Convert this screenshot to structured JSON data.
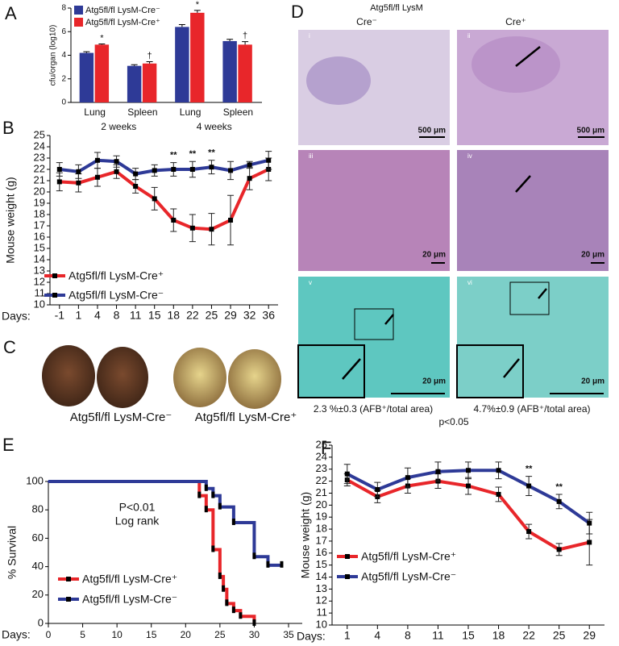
{
  "chart_data": [
    {
      "type": "bar",
      "panel_label": "A",
      "ylabel": "cfu/organ (log10)",
      "categories": [
        "Lung",
        "Spleen",
        "Lung",
        "Spleen"
      ],
      "groups": [
        "2 weeks",
        "4 weeks"
      ],
      "ylim": [
        0,
        8
      ],
      "yticks": [
        0,
        2,
        4,
        6,
        8
      ],
      "legend": "upper left",
      "series": [
        {
          "name": "Atg5fl/fl LysM-Cre⁻",
          "color": "#2e3a97",
          "values": [
            4.2,
            3.1,
            6.4,
            5.2
          ],
          "errors": [
            0.1,
            0.1,
            0.2,
            0.15
          ]
        },
        {
          "name": "Atg5fl/fl LysM-Cre⁺",
          "color": "#e8262a",
          "values": [
            4.9,
            3.3,
            7.6,
            4.9
          ],
          "errors": [
            0.06,
            0.15,
            0.2,
            0.25
          ],
          "annotations": [
            "*",
            "†",
            "*",
            "†"
          ]
        }
      ]
    },
    {
      "type": "line",
      "panel_label": "B",
      "ylabel": "Mouse weight (g)",
      "xlabel": "Days:",
      "categories": [
        "-1",
        "1",
        "4",
        "8",
        "11",
        "15",
        "18",
        "22",
        "25",
        "29",
        "32",
        "36"
      ],
      "ylim": [
        10,
        25
      ],
      "yticks": [
        10,
        11,
        12,
        13,
        14,
        15,
        16,
        17,
        18,
        19,
        20,
        21,
        22,
        23,
        24,
        25
      ],
      "legend": "lower left",
      "series": [
        {
          "name": "Atg5fl/fl LysM-Cre⁺",
          "color": "#e8262a",
          "values": [
            20.9,
            20.8,
            21.3,
            21.8,
            20.5,
            19.4,
            17.5,
            16.8,
            16.7,
            17.5,
            21.2,
            22.0
          ],
          "errors": [
            0.8,
            0.8,
            0.8,
            0.6,
            0.6,
            1.0,
            1.0,
            1.2,
            1.4,
            2.2,
            1.0,
            1.0
          ]
        },
        {
          "name": "Atg5fl/fl LysM-Cre⁻",
          "color": "#2e3a97",
          "values": [
            22.0,
            21.8,
            22.8,
            22.7,
            21.6,
            21.9,
            22.0,
            22.0,
            22.2,
            21.9,
            22.4,
            22.8
          ],
          "errors": [
            0.6,
            0.6,
            0.7,
            0.5,
            0.5,
            0.5,
            0.6,
            0.7,
            0.6,
            0.8,
            0.3,
            0.8
          ],
          "annotations": [
            null,
            null,
            null,
            null,
            null,
            null,
            "**",
            "**",
            "**",
            null,
            null,
            null
          ]
        }
      ]
    },
    {
      "type": "step",
      "panel_label": "E",
      "ylabel": "% Survival",
      "xlabel": "Days:",
      "xlim": [
        0,
        35
      ],
      "xticks": [
        0,
        5,
        10,
        15,
        20,
        25,
        30,
        35
      ],
      "ylim": [
        0,
        100
      ],
      "yticks": [
        0,
        20,
        40,
        60,
        80,
        100
      ],
      "annotations": [
        "P<0.01",
        "Log rank"
      ],
      "legend": "lower left",
      "series": [
        {
          "name": "Atg5fl/fl LysM-Cre⁺",
          "color": "#e8262a",
          "x": [
            0,
            22,
            23,
            24,
            25,
            25.5,
            26,
            27,
            28,
            30
          ],
          "values": [
            100,
            90,
            80,
            52,
            33,
            24,
            14,
            9,
            5,
            0
          ]
        },
        {
          "name": "Atg5fl/fl LysM-Cre⁻",
          "color": "#2e3a97",
          "x": [
            0,
            23,
            24,
            25,
            27,
            30,
            32,
            34
          ],
          "values": [
            100,
            95,
            90,
            82,
            71,
            47,
            41,
            41
          ]
        }
      ]
    },
    {
      "type": "line",
      "panel_label": "F",
      "ylabel": "Mouse weight (g)",
      "xlabel": "Days:",
      "categories": [
        "1",
        "4",
        "8",
        "11",
        "15",
        "18",
        "22",
        "25",
        "29"
      ],
      "ylim": [
        10,
        25
      ],
      "yticks": [
        10,
        11,
        12,
        13,
        14,
        15,
        16,
        17,
        18,
        19,
        20,
        21,
        22,
        23,
        24,
        25
      ],
      "legend": "lower left",
      "series": [
        {
          "name": "Atg5fl/fl LysM-Cre⁺",
          "color": "#e8262a",
          "values": [
            22.1,
            20.7,
            21.6,
            22.0,
            21.6,
            20.9,
            17.8,
            16.3,
            16.9
          ],
          "errors": [
            0.5,
            0.5,
            0.6,
            0.6,
            0.7,
            0.6,
            0.6,
            0.5,
            1.9
          ]
        },
        {
          "name": "Atg5fl/fl LysM-Cre⁻",
          "color": "#2e3a97",
          "values": [
            22.6,
            21.3,
            22.3,
            22.8,
            22.9,
            22.9,
            21.6,
            20.3,
            18.5
          ],
          "errors": [
            0.8,
            0.6,
            0.8,
            0.8,
            0.7,
            0.7,
            0.8,
            0.6,
            0.9
          ],
          "annotations": [
            null,
            null,
            null,
            null,
            null,
            null,
            "**",
            "**",
            null
          ]
        }
      ]
    }
  ],
  "panel_c": {
    "label": "C",
    "groups": [
      {
        "name": "Atg5fl/fl LysM-Cre⁻",
        "color": "#2e3a97"
      },
      {
        "name": "Atg5fl/fl LysM-Cre⁺",
        "color": "#e8262a"
      }
    ]
  },
  "panel_d": {
    "label": "D",
    "title": "Atg5fl/fl LysM",
    "columns": [
      "Cre⁻",
      "Cre⁺"
    ],
    "image_labels": [
      "i",
      "ii",
      "iii",
      "iv",
      "v",
      "vi"
    ],
    "scale_bars": [
      "500 μm",
      "500 μm",
      "20 μm",
      "20 μm",
      "20 μm",
      "20 μm"
    ],
    "captions": [
      "2.3 %±0.3 (AFB⁺/total area)",
      "4.7%±0.9 (AFB⁺/total area)"
    ],
    "p_value": "p<0.05"
  }
}
